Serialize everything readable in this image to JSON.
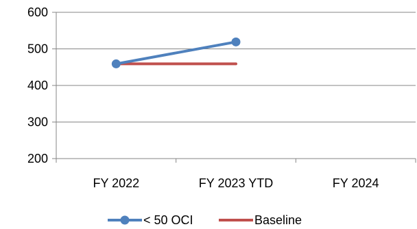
{
  "chart_data": {
    "type": "line",
    "categories": [
      "FY 2022",
      "FY 2023 YTD",
      "FY 2024"
    ],
    "series": [
      {
        "name": "< 50 OCI",
        "values": [
          459,
          519,
          null
        ],
        "color": "#4f81bd",
        "markers": true
      },
      {
        "name": "Baseline",
        "values": [
          459,
          459,
          null
        ],
        "color": "#c0504d",
        "markers": false
      }
    ],
    "ylim": [
      200,
      600
    ],
    "yticks": [
      200,
      300,
      400,
      500,
      600
    ],
    "ytick_labels": [
      "200",
      "300",
      "400",
      "500",
      "600"
    ],
    "title": "",
    "xlabel": "",
    "ylabel": "",
    "grid": true,
    "legend_position": "bottom"
  }
}
